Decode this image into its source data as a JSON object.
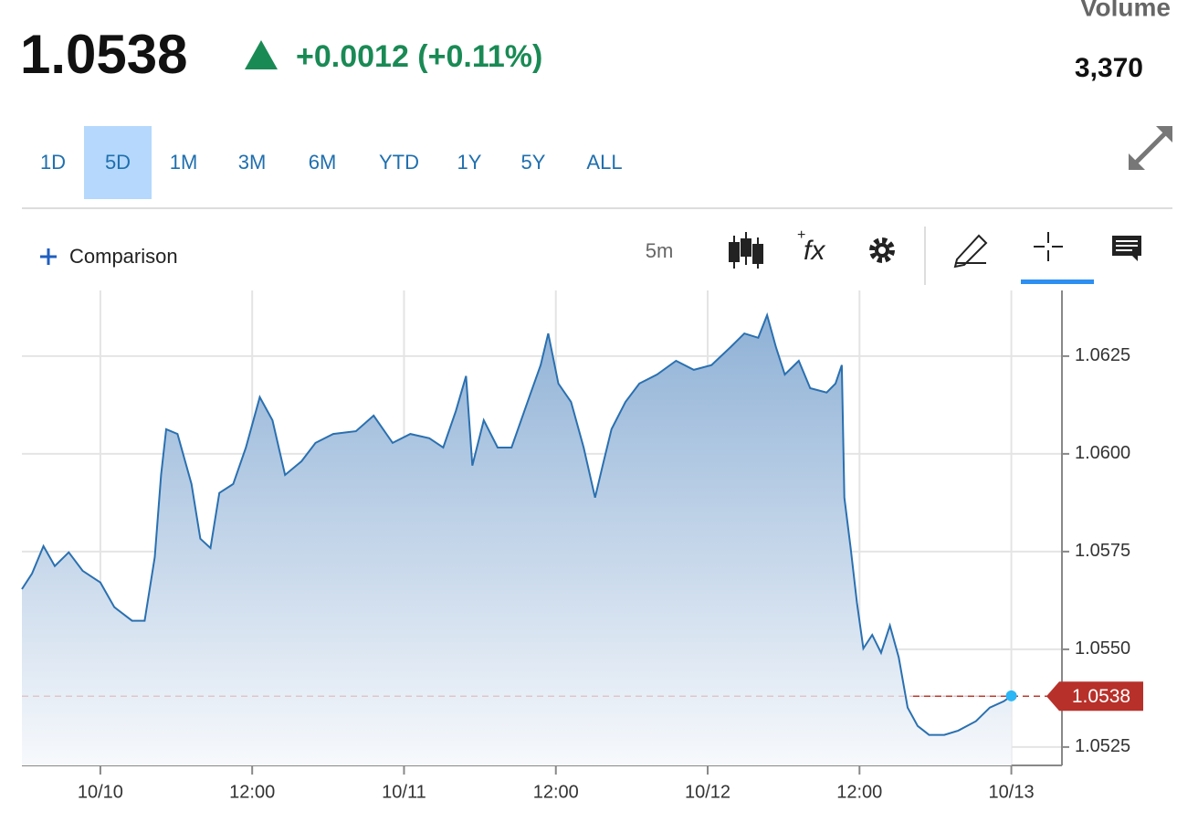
{
  "header": {
    "price": "1.0538",
    "change": "+0.0012 (+0.11%)",
    "volume_label": "Volume",
    "volume": "3,370"
  },
  "ranges": [
    "1D",
    "5D",
    "1M",
    "3M",
    "6M",
    "YTD",
    "1Y",
    "5Y",
    "ALL"
  ],
  "selected_range": 1,
  "toolbar": {
    "comparison": "Comparison",
    "interval": "5m",
    "indicator_icon": "fx"
  },
  "chart_data": {
    "type": "line",
    "x": [
      -6.2,
      -5.4,
      -4.5,
      -3.6,
      -2.5,
      -1.4,
      0,
      1.1,
      2.5,
      3.5,
      4.3,
      4.8,
      5.2,
      6.1,
      7.2,
      7.9,
      8.7,
      9.4,
      10.5,
      11.5,
      12.6,
      13.6,
      14.6,
      15.9,
      17.0,
      18.4,
      20.2,
      21.6,
      23.1,
      24.5,
      26.0,
      27.1,
      28.1,
      28.9,
      29.4,
      30.3,
      31.4,
      32.5,
      33.9,
      34.8,
      35.4,
      36.2,
      37.2,
      38.2,
      39.1,
      39.7,
      40.4,
      41.5,
      42.6,
      44.0,
      45.5,
      46.9,
      48.3,
      49.8,
      50.9,
      52.0,
      52.7,
      53.4,
      54.1,
      55.2,
      56.1,
      57.4,
      58.1,
      58.6,
      58.8,
      59.3,
      59.8,
      60.3,
      61.0,
      61.7,
      62.4,
      63.1,
      63.8,
      64.6,
      65.5,
      66.7,
      67.8,
      69.2,
      70.3,
      71.4,
      72.0
    ],
    "series": [
      {
        "color": "#2a70b0",
        "values": [
          1.05654,
          1.05694,
          1.05764,
          1.05713,
          1.05748,
          1.05701,
          1.05671,
          1.05608,
          1.05573,
          1.05573,
          1.05736,
          1.05946,
          1.06063,
          1.06051,
          1.05923,
          1.05783,
          1.05759,
          1.059,
          1.05923,
          1.06016,
          1.06145,
          1.06086,
          1.05946,
          1.05981,
          1.06028,
          1.06051,
          1.06058,
          1.06098,
          1.06028,
          1.06051,
          1.0604,
          1.06016,
          1.0611,
          1.06199,
          1.0597,
          1.06086,
          1.06016,
          1.06016,
          1.06145,
          1.06227,
          1.06308,
          1.0618,
          1.06133,
          1.06016,
          1.05888,
          1.0597,
          1.06063,
          1.06133,
          1.0618,
          1.06203,
          1.06238,
          1.06215,
          1.06227,
          1.06273,
          1.06308,
          1.06297,
          1.06355,
          1.06273,
          1.06203,
          1.06238,
          1.06168,
          1.06157,
          1.0618,
          1.06227,
          1.05888,
          1.05759,
          1.05619,
          1.05502,
          1.05537,
          1.05491,
          1.05561,
          1.05479,
          1.05351,
          1.05304,
          1.05281,
          1.05281,
          1.05292,
          1.05316,
          1.05351,
          1.05367,
          1.05381
        ]
      }
    ],
    "last_price": 1.0538,
    "xlim": [
      -6.2,
      76
    ],
    "xticks": [
      {
        "value": 0,
        "label": "10/10"
      },
      {
        "value": 12,
        "label": "12:00"
      },
      {
        "value": 24,
        "label": "10/11"
      },
      {
        "value": 36,
        "label": "12:00"
      },
      {
        "value": 48,
        "label": "10/12"
      },
      {
        "value": 60,
        "label": "12:00"
      },
      {
        "value": 72,
        "label": "10/13"
      }
    ],
    "ylim": [
      1.05203,
      1.06418
    ],
    "yticks": [
      1.0525,
      {
        "value": 1.055,
        "label": "1.0550"
      },
      1.0575,
      {
        "value": 1.06,
        "label": "1.0600"
      },
      1.0625
    ],
    "grid": true
  }
}
